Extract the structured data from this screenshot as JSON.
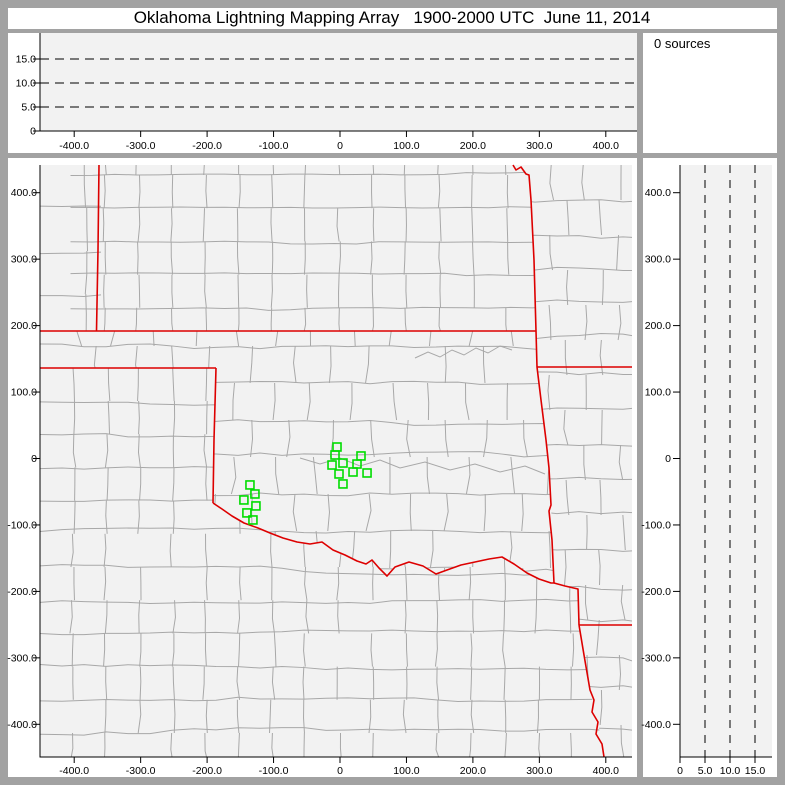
{
  "window": {
    "title": "Oklahoma Lightning Mapping Array   1900-2000 UTC  June 11, 2014"
  },
  "sources_panel": {
    "label": "0 sources"
  },
  "colors": {
    "canvas_gray": "#a2a2a2",
    "panel_white": "#ffffff",
    "plot_background": "#f2f2f2",
    "axis_black": "#000000",
    "county_border_gray": "#a8a8a8",
    "state_border_red": "#dd0000",
    "station_green": "#00dd00"
  },
  "chart_data": [
    {
      "name": "altitude-vs-eastwest",
      "type": "scatter",
      "position": "top",
      "x_ticks": [
        "-400.0",
        "-300.0",
        "-200.0",
        "-100.0",
        "0",
        "100.0",
        "200.0",
        "300.0",
        "400.0"
      ],
      "x_tick_values": [
        -400,
        -300,
        -200,
        -100,
        0,
        100,
        200,
        300,
        400
      ],
      "y_ticks": [
        "0",
        "5.0",
        "10.0",
        "15.0"
      ],
      "y_tick_values": [
        0,
        5,
        10,
        15
      ],
      "xlim": [
        -452,
        447
      ],
      "ylim": [
        0,
        20.4
      ],
      "gridlines": {
        "style": "dashed",
        "y_values": [
          5,
          10,
          15
        ]
      },
      "points": [],
      "points_count": 0
    },
    {
      "name": "plan-view-map",
      "type": "scatter",
      "position": "main",
      "x_ticks": [
        "-400.0",
        "-300.0",
        "-200.0",
        "-100.0",
        "0",
        "100.0",
        "200.0",
        "300.0",
        "400.0"
      ],
      "x_tick_values": [
        -400,
        -300,
        -200,
        -100,
        0,
        100,
        200,
        300,
        400
      ],
      "y_ticks": [
        "400.0",
        "300.0",
        "200.0",
        "100.0",
        "0",
        "-100.0",
        "-200.0",
        "-300.0",
        "-400.0"
      ],
      "y_tick_values": [
        400,
        300,
        200,
        100,
        0,
        -100,
        -200,
        -300,
        -400
      ],
      "xlim": [
        -452,
        440
      ],
      "ylim": [
        -449,
        442
      ],
      "layers": {
        "county_borders": true,
        "state_borders": true,
        "rivers": true
      },
      "stations_km": [
        [
          -4.5,
          17.3
        ],
        [
          -7.5,
          5.3
        ],
        [
          31.6,
          3.8
        ],
        [
          -12.0,
          -9.8
        ],
        [
          4.5,
          -6.8
        ],
        [
          25.6,
          -8.3
        ],
        [
          -1.5,
          -23.3
        ],
        [
          19.6,
          -20.3
        ],
        [
          40.7,
          -21.8
        ],
        [
          4.5,
          -38.3
        ],
        [
          -135.5,
          -39.8
        ],
        [
          -128.0,
          -53.4
        ],
        [
          -144.6,
          -62.4
        ],
        [
          -126.5,
          -71.4
        ],
        [
          -140.1,
          -81.9
        ],
        [
          -131.0,
          -92.5
        ]
      ],
      "points": [],
      "points_count": 0
    },
    {
      "name": "altitude-vs-northsouth",
      "type": "scatter",
      "position": "right",
      "x_ticks": [
        "0",
        "5.0",
        "10.0",
        "15.0"
      ],
      "x_tick_values": [
        0,
        5,
        10,
        15
      ],
      "y_ticks": [
        "400.0",
        "300.0",
        "200.0",
        "100.0",
        "0",
        "-100.0",
        "-200.0",
        "-300.0",
        "-400.0"
      ],
      "y_tick_values": [
        400,
        300,
        200,
        100,
        0,
        -100,
        -200,
        -300,
        -400
      ],
      "xlim": [
        0,
        18.4
      ],
      "ylim": [
        -449,
        442
      ],
      "gridlines": {
        "style": "dashed",
        "x_values": [
          5,
          10,
          15
        ]
      },
      "points": [],
      "points_count": 0
    }
  ]
}
